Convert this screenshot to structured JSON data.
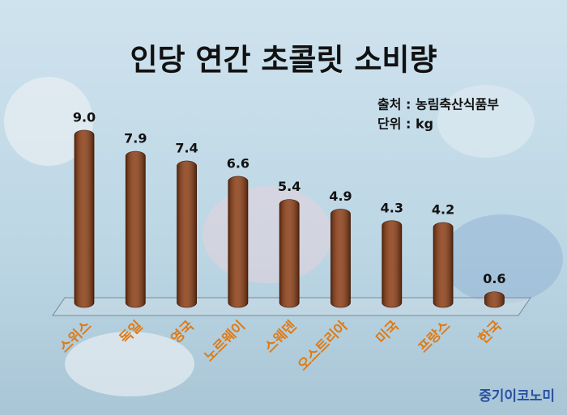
{
  "chart_data": {
    "type": "bar",
    "title": "인당 연간 초콜릿 소비량",
    "source": "출처 : 농림축산식품부",
    "unit": "단위 : kg",
    "watermark": "중기이코노미",
    "categories": [
      "스위스",
      "독일",
      "영국",
      "노르웨이",
      "스웨덴",
      "오스트리아",
      "미국",
      "프랑스",
      "한국"
    ],
    "values": [
      9.0,
      7.9,
      7.4,
      6.6,
      5.4,
      4.9,
      4.3,
      4.2,
      0.6
    ],
    "value_labels": [
      "9.0",
      "7.9",
      "7.4",
      "6.6",
      "5.4",
      "4.9",
      "4.3",
      "4.2",
      "0.6"
    ],
    "color": "#8a3a10",
    "label_color": "#e07a12"
  }
}
